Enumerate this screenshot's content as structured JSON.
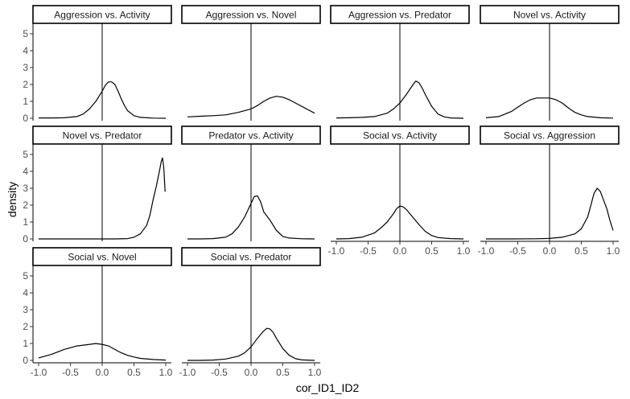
{
  "chart_data": {
    "type": "line",
    "layout": "facet_wrap",
    "ncol": 4,
    "xlabel": "cor_ID1_ID2",
    "ylabel": "density",
    "xlim": [
      -1.0,
      1.0
    ],
    "ylim": [
      0,
      5
    ],
    "x_ticks": [
      -1.0,
      -0.5,
      0.0,
      0.5,
      1.0
    ],
    "x_tick_labels": [
      "-1.0",
      "-0.5",
      "0.0",
      "0.5",
      "1.0"
    ],
    "y_ticks": [
      0,
      1,
      2,
      3,
      4,
      5
    ],
    "y_tick_labels": [
      "0",
      "1",
      "2",
      "3",
      "4",
      "5"
    ],
    "reference_line_x": 0,
    "grid": false,
    "line_color": "#000000",
    "strip_fill": "#ffffff",
    "panels": [
      {
        "title": "Aggression vs. Activity",
        "x": [
          -1.0,
          -0.8,
          -0.6,
          -0.4,
          -0.3,
          -0.2,
          -0.1,
          0.0,
          0.05,
          0.1,
          0.15,
          0.2,
          0.25,
          0.3,
          0.35,
          0.4,
          0.5,
          0.6,
          0.8,
          1.0
        ],
        "y": [
          0.02,
          0.02,
          0.03,
          0.1,
          0.25,
          0.55,
          1.0,
          1.6,
          1.95,
          2.15,
          2.15,
          2.0,
          1.6,
          1.15,
          0.75,
          0.45,
          0.15,
          0.05,
          0.01,
          0.0
        ]
      },
      {
        "title": "Aggression vs. Novel",
        "x": [
          -1.0,
          -0.8,
          -0.6,
          -0.4,
          -0.2,
          -0.1,
          0.0,
          0.1,
          0.2,
          0.3,
          0.4,
          0.5,
          0.6,
          0.7,
          0.8,
          0.9,
          1.0
        ],
        "y": [
          0.08,
          0.12,
          0.15,
          0.2,
          0.35,
          0.45,
          0.55,
          0.75,
          1.0,
          1.2,
          1.3,
          1.25,
          1.1,
          0.9,
          0.7,
          0.5,
          0.3
        ]
      },
      {
        "title": "Aggression vs. Predator",
        "x": [
          -1.0,
          -0.8,
          -0.6,
          -0.4,
          -0.2,
          -0.1,
          0.0,
          0.1,
          0.2,
          0.25,
          0.3,
          0.35,
          0.4,
          0.5,
          0.6,
          0.7,
          0.8,
          1.0
        ],
        "y": [
          0.02,
          0.03,
          0.05,
          0.1,
          0.3,
          0.55,
          0.9,
          1.4,
          1.95,
          2.2,
          2.1,
          1.8,
          1.4,
          0.7,
          0.25,
          0.08,
          0.02,
          0.0
        ]
      },
      {
        "title": "Novel vs. Activity",
        "x": [
          -1.0,
          -0.8,
          -0.6,
          -0.5,
          -0.4,
          -0.3,
          -0.2,
          -0.1,
          0.0,
          0.1,
          0.2,
          0.3,
          0.4,
          0.5,
          0.6,
          0.8,
          1.0
        ],
        "y": [
          0.03,
          0.1,
          0.4,
          0.65,
          0.9,
          1.1,
          1.2,
          1.2,
          1.2,
          1.1,
          0.9,
          0.6,
          0.35,
          0.2,
          0.1,
          0.03,
          0.01
        ]
      },
      {
        "title": "Novel vs. Predator",
        "x": [
          -1.0,
          -0.6,
          -0.2,
          0.2,
          0.4,
          0.5,
          0.6,
          0.7,
          0.75,
          0.8,
          0.85,
          0.9,
          0.93,
          0.95,
          0.97,
          0.99
        ],
        "y": [
          0.0,
          0.0,
          0.0,
          0.0,
          0.02,
          0.1,
          0.3,
          0.8,
          1.4,
          2.3,
          3.1,
          4.0,
          4.6,
          4.8,
          4.2,
          2.8
        ]
      },
      {
        "title": "Predator vs. Activity",
        "x": [
          -1.0,
          -0.8,
          -0.6,
          -0.4,
          -0.3,
          -0.2,
          -0.1,
          0.0,
          0.05,
          0.1,
          0.15,
          0.2,
          0.3,
          0.4,
          0.5,
          0.6,
          0.8,
          1.0
        ],
        "y": [
          0.0,
          0.0,
          0.02,
          0.1,
          0.3,
          0.7,
          1.3,
          2.1,
          2.5,
          2.55,
          2.2,
          1.6,
          1.1,
          0.5,
          0.15,
          0.05,
          0.01,
          0.0
        ]
      },
      {
        "title": "Social vs. Activity",
        "x": [
          -1.0,
          -0.8,
          -0.6,
          -0.4,
          -0.3,
          -0.2,
          -0.1,
          -0.05,
          0.0,
          0.05,
          0.1,
          0.2,
          0.3,
          0.4,
          0.5,
          0.6,
          0.8,
          1.0
        ],
        "y": [
          0.0,
          0.02,
          0.1,
          0.35,
          0.65,
          1.0,
          1.5,
          1.8,
          1.95,
          1.9,
          1.75,
          1.3,
          0.85,
          0.45,
          0.2,
          0.08,
          0.02,
          0.0
        ]
      },
      {
        "title": "Social vs. Aggression",
        "x": [
          -1.0,
          -0.6,
          -0.2,
          0.0,
          0.2,
          0.4,
          0.5,
          0.6,
          0.65,
          0.7,
          0.75,
          0.8,
          0.85,
          0.9,
          0.95,
          1.0
        ],
        "y": [
          0.0,
          0.0,
          0.01,
          0.03,
          0.1,
          0.3,
          0.6,
          1.3,
          2.0,
          2.7,
          3.0,
          2.8,
          2.3,
          1.8,
          1.1,
          0.5
        ]
      },
      {
        "title": "Social vs. Novel",
        "x": [
          -1.0,
          -0.8,
          -0.6,
          -0.4,
          -0.2,
          -0.1,
          0.0,
          0.1,
          0.2,
          0.3,
          0.4,
          0.5,
          0.6,
          0.8,
          1.0
        ],
        "y": [
          0.15,
          0.35,
          0.65,
          0.85,
          0.95,
          1.0,
          0.95,
          0.85,
          0.65,
          0.45,
          0.3,
          0.2,
          0.12,
          0.05,
          0.02
        ]
      },
      {
        "title": "Social vs. Predator",
        "x": [
          -1.0,
          -0.8,
          -0.6,
          -0.4,
          -0.2,
          -0.1,
          0.0,
          0.1,
          0.2,
          0.25,
          0.3,
          0.35,
          0.4,
          0.5,
          0.6,
          0.7,
          0.8,
          1.0
        ],
        "y": [
          0.0,
          0.0,
          0.02,
          0.08,
          0.25,
          0.45,
          0.8,
          1.3,
          1.75,
          1.9,
          1.85,
          1.65,
          1.3,
          0.7,
          0.3,
          0.1,
          0.03,
          0.0
        ]
      }
    ]
  }
}
